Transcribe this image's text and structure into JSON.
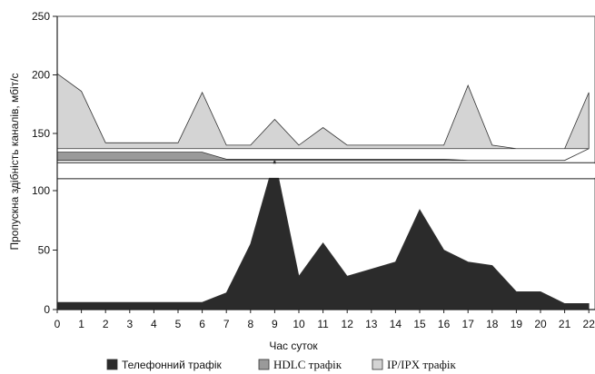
{
  "chart_data": {
    "type": "area",
    "xlabel": "Час суток",
    "ylabel": "Пропускна здібність каналів, мбіт/с",
    "x": [
      0,
      1,
      2,
      3,
      4,
      5,
      6,
      7,
      8,
      9,
      10,
      11,
      12,
      13,
      14,
      15,
      16,
      17,
      18,
      19,
      20,
      21,
      22
    ],
    "x_tick_labels": [
      "0",
      "1",
      "2",
      "3",
      "4",
      "5",
      "6",
      "7",
      "8",
      "9",
      "10",
      "11",
      "12",
      "13",
      "14",
      "15",
      "16",
      "17",
      "18",
      "19",
      "20",
      "21",
      "22"
    ],
    "ylim": [
      0,
      250
    ],
    "y_ticks": [
      0,
      50,
      100,
      150,
      200,
      250
    ],
    "y_tick_labels": [
      "0",
      "50",
      "100",
      "150",
      "200",
      "250"
    ],
    "axis_break": {
      "from": 110,
      "to": 125
    },
    "grid": false,
    "legend_placement": "bottom",
    "series": [
      {
        "name": "Телефонний трафік",
        "color": "#2b2b2b",
        "values": [
          6,
          6,
          6,
          6,
          6,
          6,
          6,
          14,
          55,
          128,
          28,
          56,
          28,
          34,
          40,
          84,
          50,
          40,
          37,
          15,
          15,
          5,
          5
        ]
      },
      {
        "name": "HDLC трафік",
        "color": "#9a9a9a",
        "lower": [
          127,
          127,
          127,
          127,
          127,
          127,
          127,
          127,
          127,
          127,
          127,
          127,
          127,
          127,
          127,
          127,
          127,
          127,
          127,
          127,
          127,
          127,
          137
        ],
        "upper": [
          134,
          134,
          134,
          134,
          134,
          134,
          134,
          128,
          128,
          128,
          128,
          128,
          128,
          128,
          128,
          128,
          128,
          127,
          127,
          127,
          127,
          127,
          137
        ]
      },
      {
        "name": "IP/IPX трафік",
        "color": "#d4d4d4",
        "lower": [
          137,
          137,
          137,
          137,
          137,
          137,
          137,
          137,
          137,
          137,
          137,
          137,
          137,
          137,
          137,
          137,
          137,
          137,
          137,
          137,
          137,
          137,
          137
        ],
        "upper": [
          201,
          186,
          142,
          142,
          142,
          142,
          185,
          140,
          140,
          162,
          140,
          155,
          140,
          140,
          140,
          140,
          140,
          191,
          140,
          137,
          137,
          137,
          185
        ]
      }
    ]
  }
}
